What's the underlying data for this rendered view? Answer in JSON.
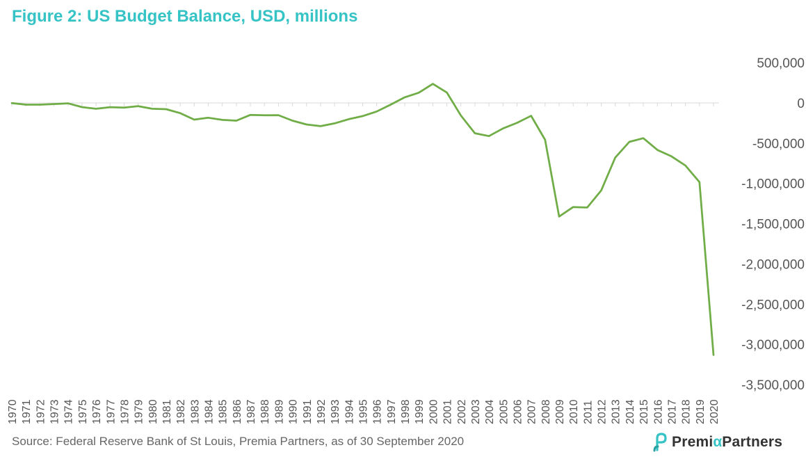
{
  "figure": {
    "title": "Figure 2: US Budget Balance, USD, millions",
    "source": "Source: Federal Reserve Bank of St Louis, Premia Partners, as of 30 September 2020"
  },
  "logo": {
    "prefix": "Premi",
    "alpha": "α",
    "suffix": "Partners",
    "mark_icon": "premia-partners-logo-icon",
    "accent_color": "#36c3c5"
  },
  "chart_data": {
    "type": "line",
    "title": "Figure 2: US Budget Balance, USD, millions",
    "xlabel": "",
    "ylabel": "",
    "ylim": [
      -3500000,
      500000
    ],
    "y_ticks": [
      500000,
      0,
      -500000,
      -1000000,
      -1500000,
      -2000000,
      -2500000,
      -3000000,
      -3500000
    ],
    "y_tick_labels": [
      "500,000",
      "0",
      "-500,000",
      "-1,000,000",
      "-1,500,000",
      "-2,000,000",
      "-2,500,000",
      "-3,000,000",
      "-3,500,000"
    ],
    "grid": false,
    "legend": "none",
    "line_color": "#70ad47",
    "x": [
      "1970",
      "1971",
      "1972",
      "1973",
      "1974",
      "1975",
      "1976",
      "1977",
      "1978",
      "1979",
      "1980",
      "1981",
      "1982",
      "1983",
      "1984",
      "1985",
      "1986",
      "1987",
      "1988",
      "1989",
      "1990",
      "1991",
      "1992",
      "1993",
      "1994",
      "1995",
      "1996",
      "1997",
      "1998",
      "1999",
      "2000",
      "2001",
      "2002",
      "2003",
      "2004",
      "2005",
      "2006",
      "2007",
      "2008",
      "2009",
      "2010",
      "2011",
      "2012",
      "2013",
      "2014",
      "2015",
      "2016",
      "2017",
      "2018",
      "2019",
      "2020"
    ],
    "series": [
      {
        "values": [
          -3000,
          -23000,
          -23000,
          -15000,
          -6000,
          -53000,
          -74000,
          -54000,
          -59000,
          -41000,
          -74000,
          -79000,
          -128000,
          -208000,
          -185000,
          -212000,
          -221000,
          -150000,
          -155000,
          -153000,
          -221000,
          -269000,
          -290000,
          -255000,
          -203000,
          -164000,
          -107000,
          -22000,
          69000,
          126000,
          236000,
          128000,
          -158000,
          -378000,
          -413000,
          -318000,
          -248000,
          -161000,
          -459000,
          -1413000,
          -1294000,
          -1300000,
          -1087000,
          -680000,
          -485000,
          -439000,
          -585000,
          -665000,
          -779000,
          -984000,
          -3132000
        ]
      }
    ]
  }
}
